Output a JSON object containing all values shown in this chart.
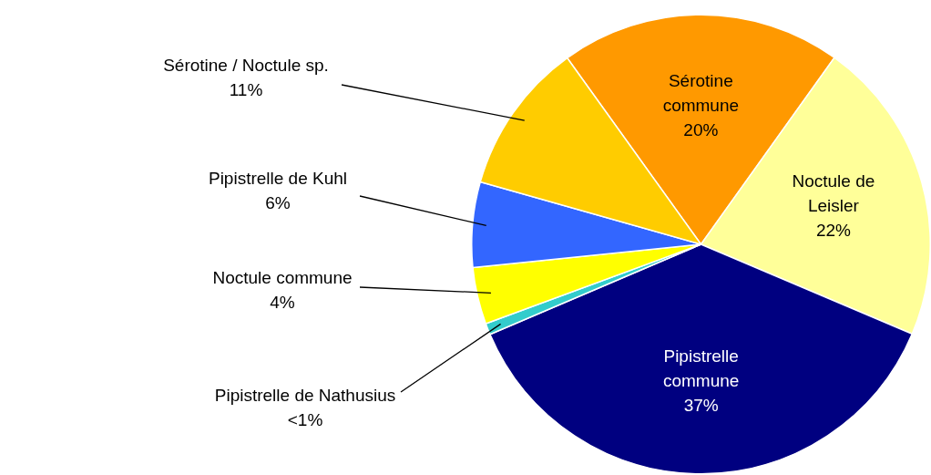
{
  "chart_data": {
    "type": "pie",
    "categories": [
      "Sérotine commune",
      "Noctule de Leisler",
      "Pipistrelle commune",
      "Pipistrelle de Nathusius",
      "Noctule commune",
      "Pipistrelle de Kuhl",
      "Sérotine / Noctule sp."
    ],
    "values": [
      19.8,
      21.5,
      37.2,
      0.8,
      4.0,
      6.0,
      10.7
    ],
    "colors": [
      "#ff9900",
      "#ffff99",
      "#000080",
      "#33cccc",
      "#ffff00",
      "#3366ff",
      "#ffcc00"
    ],
    "value_labels": [
      "20%",
      "22%",
      "37%",
      "<1%",
      "4%",
      "6%",
      "11%"
    ]
  }
}
